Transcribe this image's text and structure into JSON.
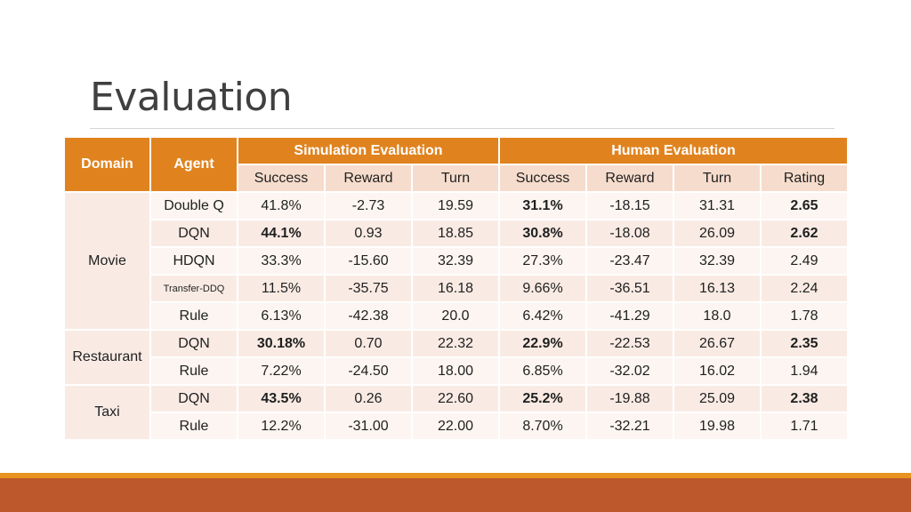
{
  "slide": {
    "title": "Evaluation"
  },
  "table": {
    "headers": {
      "domain": "Domain",
      "agent": "Agent",
      "simulation": "Simulation Evaluation",
      "human": "Human Evaluation"
    },
    "subheaders": [
      "Success",
      "Reward",
      "Turn",
      "Success",
      "Reward",
      "Turn",
      "Rating"
    ],
    "domains": [
      "Movie",
      "Restaurant",
      "Taxi"
    ],
    "rows": [
      {
        "agent": "Double Q",
        "cells": [
          "41.8%",
          "-2.73",
          "19.59",
          "31.1%",
          "-18.15",
          "31.31",
          "2.65"
        ]
      },
      {
        "agent": "DQN",
        "cells": [
          "44.1%",
          "0.93",
          "18.85",
          "30.8%",
          "-18.08",
          "26.09",
          "2.62"
        ]
      },
      {
        "agent": "HDQN",
        "cells": [
          "33.3%",
          "-15.60",
          "32.39",
          "27.3%",
          "-23.47",
          "32.39",
          "2.49"
        ]
      },
      {
        "agent": "Transfer-DDQ",
        "cells": [
          "11.5%",
          "-35.75",
          "16.18",
          "9.66%",
          "-36.51",
          "16.13",
          "2.24"
        ]
      },
      {
        "agent": "Rule",
        "cells": [
          "6.13%",
          "-42.38",
          "20.0",
          "6.42%",
          "-41.29",
          "18.0",
          "1.78"
        ]
      },
      {
        "agent": "DQN",
        "cells": [
          "30.18%",
          "0.70",
          "22.32",
          "22.9%",
          "-22.53",
          "26.67",
          "2.35"
        ]
      },
      {
        "agent": "Rule",
        "cells": [
          "7.22%",
          "-24.50",
          "18.00",
          "6.85%",
          "-32.02",
          "16.02",
          "1.94"
        ]
      },
      {
        "agent": "DQN",
        "cells": [
          "43.5%",
          "0.26",
          "22.60",
          "25.2%",
          "-19.88",
          "25.09",
          "2.38"
        ]
      },
      {
        "agent": "Rule",
        "cells": [
          "12.2%",
          "-31.00",
          "22.00",
          "8.70%",
          "-32.21",
          "19.98",
          "1.71"
        ]
      }
    ]
  }
}
